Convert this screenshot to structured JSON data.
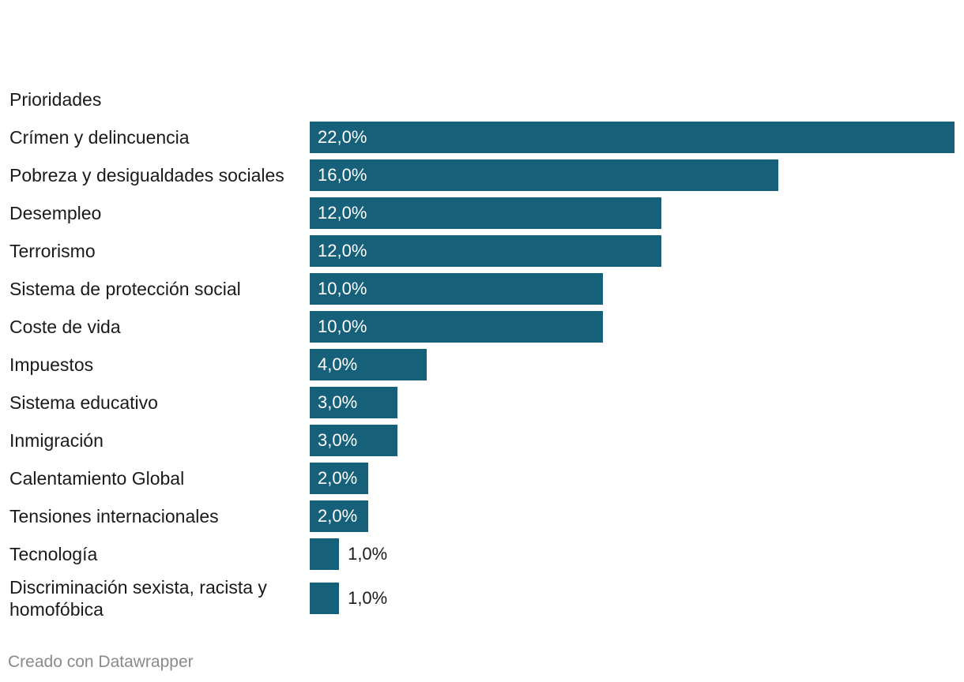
{
  "chart_data": {
    "type": "bar",
    "orientation": "horizontal",
    "column_header": "Prioridades",
    "categories": [
      "Crímen y delincuencia",
      "Pobreza y desigualdades sociales",
      "Desempleo",
      "Terrorismo",
      "Sistema de protección social",
      "Coste de vida",
      "Impuestos",
      "Sistema educativo",
      "Inmigración",
      "Calentamiento Global",
      "Tensiones internacionales",
      "Tecnología",
      "Discriminación sexista, racista y homofóbica"
    ],
    "values": [
      22,
      16,
      12,
      12,
      10,
      10,
      4,
      3,
      3,
      2,
      2,
      1,
      1
    ],
    "value_labels": [
      "22,0%",
      "16,0%",
      "12,0%",
      "12,0%",
      "10,0%",
      "10,0%",
      "4,0%",
      "3,0%",
      "3,0%",
      "2,0%",
      "2,0%",
      "1,0%",
      "1,0%"
    ],
    "xlim": [
      0,
      22
    ],
    "bar_color": "#17607a"
  },
  "footer": {
    "credit": "Creado con Datawrapper"
  }
}
